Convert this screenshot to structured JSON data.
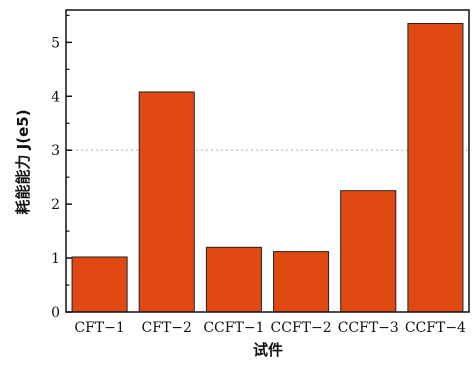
{
  "chart_data": {
    "type": "bar",
    "title": "",
    "xlabel": "试件",
    "ylabel": "耗能能力 J(e5)",
    "categories": [
      "CFT−1",
      "CFT−2",
      "CCFT−1",
      "CCFT−2",
      "CCFT−3",
      "CCFT−4"
    ],
    "values": [
      1.02,
      4.08,
      1.2,
      1.12,
      2.25,
      5.35
    ],
    "ylim": [
      0,
      5.6
    ],
    "yticks": [
      "0",
      "1",
      "2",
      "3",
      "4",
      "5"
    ],
    "reference_line": 3,
    "grid": false,
    "legend": "none",
    "bar_color": "#e04a12",
    "reference_line_color": "#bdbdbd"
  }
}
